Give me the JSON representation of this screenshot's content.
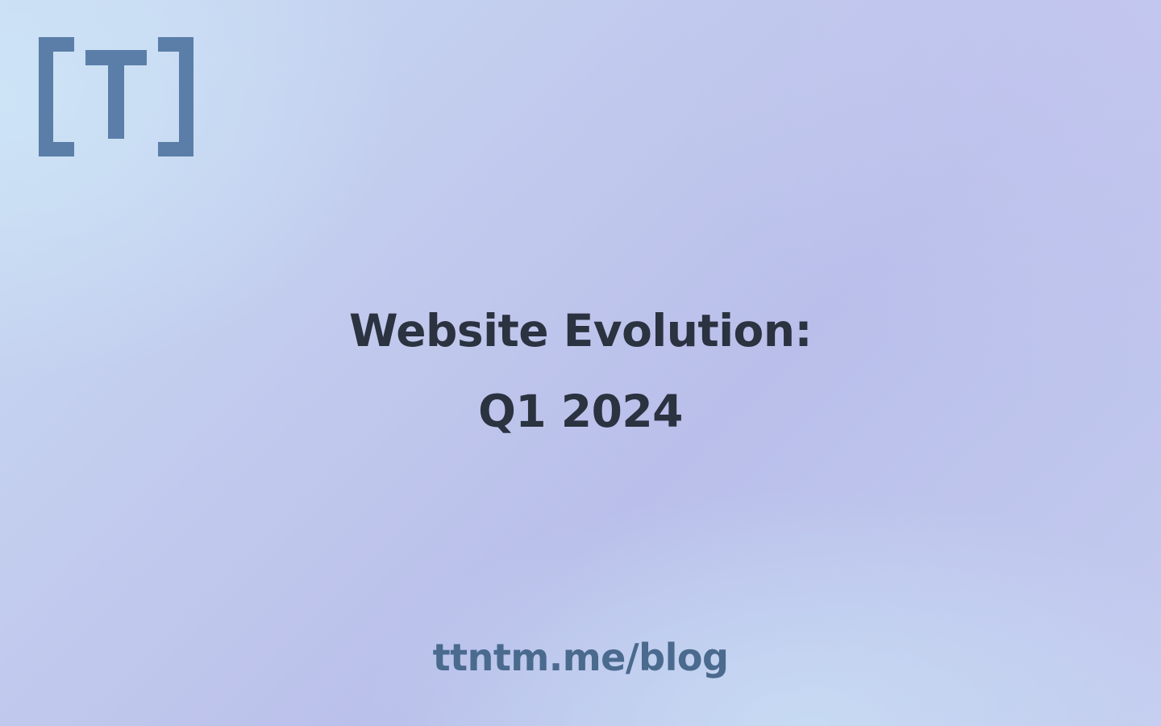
{
  "brand": {
    "logo_text": "[T]",
    "logo_color": "#5b7ea8"
  },
  "title": {
    "line1": "Website Evolution:",
    "line2": "Q1 2024"
  },
  "footer": {
    "link_text": "ttntm.me/blog"
  },
  "colors": {
    "title_text": "#2b3240",
    "link_text": "#4a6a8e"
  }
}
